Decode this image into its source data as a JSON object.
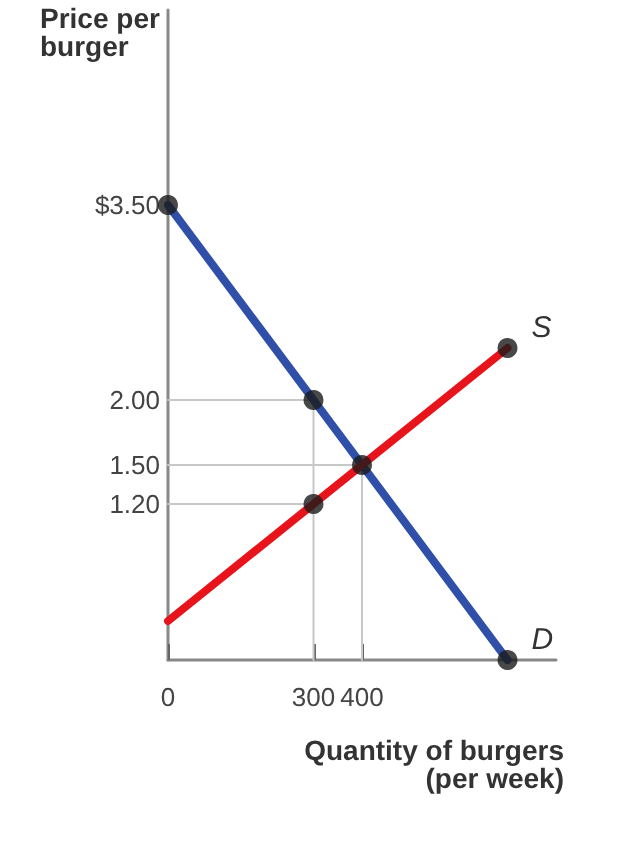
{
  "chart_data": {
    "type": "line",
    "xlabel": "Quantity of burgers\n(per week)",
    "ylabel": "Price per\nburger",
    "xlim": [
      0,
      800
    ],
    "xticks": [
      0,
      300,
      400
    ],
    "ylim": [
      0,
      5
    ],
    "yticks": [
      {
        "value": 3.5,
        "label": "$3.50"
      },
      {
        "value": 2,
        "label": "2.00"
      },
      {
        "value": 1.5,
        "label": "1.50"
      },
      {
        "value": 1.2,
        "label": "1.20"
      }
    ],
    "grid": false,
    "legend": false,
    "marker": "none",
    "series": [
      {
        "x": [
          0,
          300
        ],
        "values": [
          2,
          2
        ],
        "color": "#c8c8c8"
      },
      {
        "x": [
          0,
          400
        ],
        "values": [
          1.5,
          1.5
        ],
        "color": "#c8c8c8"
      },
      {
        "x": [
          0,
          300
        ],
        "values": [
          1.2,
          1.2
        ],
        "color": "#c8c8c8"
      },
      {
        "x": [
          300,
          300
        ],
        "values": [
          0,
          2
        ],
        "color": "#c8c8c8"
      },
      {
        "x": [
          400,
          400
        ],
        "values": [
          0,
          1.5
        ],
        "color": "#c8c8c8"
      },
      {
        "name": "D",
        "x": [
          0,
          700
        ],
        "values": [
          3.5,
          0
        ],
        "color": "#2f4fa8"
      },
      {
        "name": "S",
        "x": [
          0,
          700
        ],
        "values": [
          0.3,
          2.4
        ],
        "color": "#e8141c"
      },
      {
        "type": "scatter",
        "marker": "circle",
        "x": [
          0,
          300,
          400,
          300,
          700,
          700
        ],
        "values": [
          3.5,
          2,
          1.5,
          1.2,
          2.4,
          0
        ],
        "color": "#1a1a1a"
      }
    ]
  }
}
